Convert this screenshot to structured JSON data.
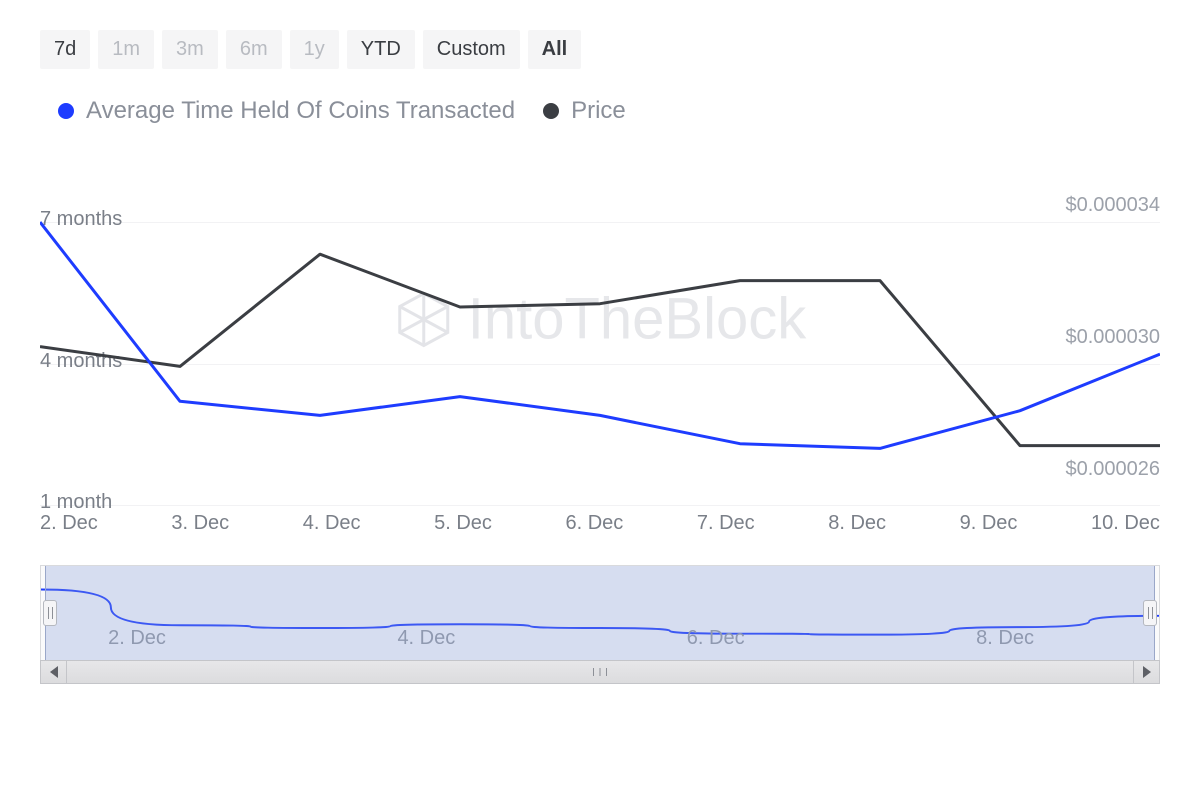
{
  "range_tabs": [
    {
      "label": "7d",
      "style": "dark"
    },
    {
      "label": "1m",
      "style": "muted"
    },
    {
      "label": "3m",
      "style": "muted"
    },
    {
      "label": "6m",
      "style": "muted"
    },
    {
      "label": "1y",
      "style": "muted"
    },
    {
      "label": "YTD",
      "style": "dark"
    },
    {
      "label": "Custom",
      "style": "dark"
    },
    {
      "label": "All",
      "style": "dark bold"
    }
  ],
  "legend": {
    "series1": {
      "label": "Average Time Held Of Coins Transacted",
      "color": "#1e3cff"
    },
    "series2": {
      "label": "Price",
      "color": "#3b3e43"
    }
  },
  "watermark": "IntoTheBlock",
  "chart": {
    "type": "line",
    "x_categories": [
      "2. Dec",
      "3. Dec",
      "4. Dec",
      "5. Dec",
      "6. Dec",
      "7. Dec",
      "8. Dec",
      "9. Dec",
      "10. Dec"
    ],
    "left_axis": {
      "label_font_size": 20,
      "ticks": [
        {
          "value": 7,
          "label": "7 months"
        },
        {
          "value": 4,
          "label": "4 months"
        },
        {
          "value": 1,
          "label": "1 month"
        }
      ],
      "min": 1,
      "max": 8
    },
    "right_axis": {
      "label_font_size": 20,
      "ticks": [
        {
          "value": 3.4e-05,
          "label": "$0.000034"
        },
        {
          "value": 3e-05,
          "label": "$0.000030"
        },
        {
          "value": 2.6e-05,
          "label": "$0.000026"
        }
      ],
      "min": 2.5e-05,
      "max": 3.5e-05
    },
    "series_time_held": {
      "color": "#1e3cff",
      "width": 3,
      "values": [
        7.0,
        3.2,
        2.9,
        3.3,
        2.9,
        2.3,
        2.2,
        3.0,
        4.2
      ]
    },
    "series_price": {
      "color": "#3b3e43",
      "width": 3,
      "values": [
        2.98e-05,
        2.92e-05,
        3.26e-05,
        3.1e-05,
        3.11e-05,
        3.18e-05,
        3.18e-05,
        2.68e-05,
        2.68e-05
      ]
    },
    "grid_color": "#f2f2f4",
    "background_color": "#ffffff"
  },
  "navigator": {
    "x_ticks": [
      "2. Dec",
      "4. Dec",
      "6. Dec",
      "8. Dec"
    ],
    "line_color": "#1e3cff",
    "mask_color": "rgba(131,156,214,0.30)",
    "values": [
      7.0,
      3.2,
      2.9,
      3.3,
      2.9,
      2.3,
      2.2,
      3.0,
      4.2
    ]
  }
}
